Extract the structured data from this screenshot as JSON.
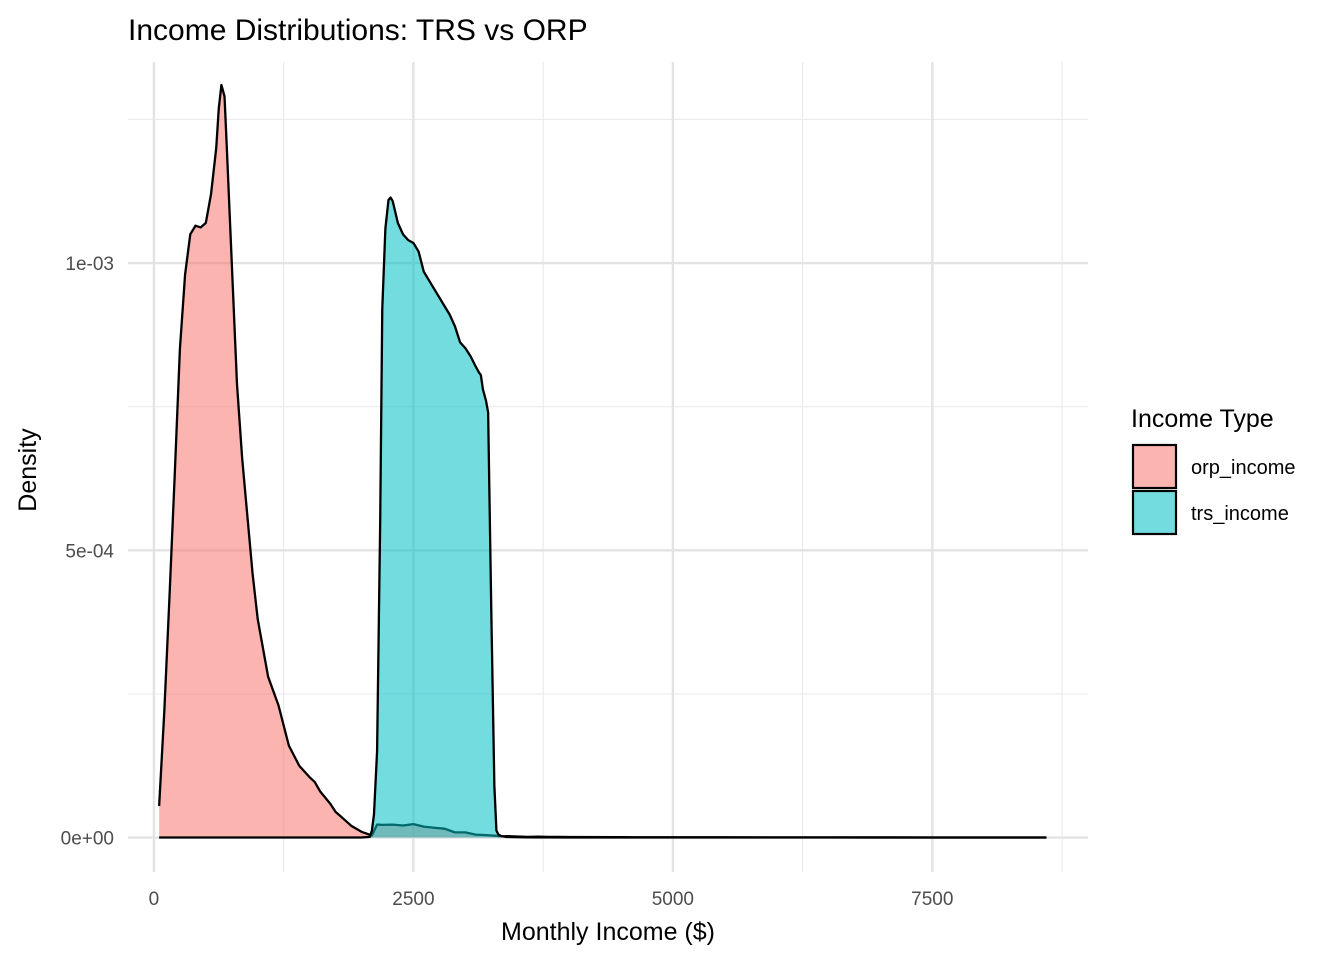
{
  "chart_data": {
    "type": "area",
    "title": "Income Distributions: TRS vs ORP",
    "xlabel": "Monthly Income ($)",
    "ylabel": "Density",
    "xlim": [
      -250,
      9000
    ],
    "ylim": [
      -6e-05,
      0.00135
    ],
    "x_ticks": [
      0,
      2500,
      5000,
      7500
    ],
    "x_tick_labels": [
      "0",
      "2500",
      "5000",
      "7500"
    ],
    "x_minor_ticks": [
      1250,
      3750,
      6250,
      8750
    ],
    "y_ticks": [
      0,
      0.0005,
      0.001
    ],
    "y_tick_labels": [
      "0e+00",
      "5e-04",
      "1e-03"
    ],
    "y_minor_ticks": [
      0.00025,
      0.00075,
      0.00125
    ],
    "grid": true,
    "legend": {
      "title": "Income Type",
      "placement": "right"
    },
    "series": [
      {
        "name": "orp_income",
        "color": "#F8766D",
        "x": [
          50,
          100,
          150,
          200,
          250,
          300,
          350,
          400,
          450,
          500,
          550,
          600,
          625,
          650,
          680,
          700,
          750,
          800,
          850,
          900,
          950,
          1000,
          1050,
          1100,
          1200,
          1300,
          1400,
          1500,
          1550,
          1600,
          1700,
          1750,
          1800,
          1900,
          2000,
          2100,
          2150,
          2200,
          2300,
          2400,
          2500,
          2600,
          2700,
          2800,
          2900,
          3000,
          3100,
          3200,
          3300,
          3350,
          3400,
          3500,
          3600,
          3700,
          3800,
          3900,
          4000,
          4500,
          5000,
          5500,
          6000,
          6500,
          7000,
          7500,
          8000,
          8600
        ],
        "values": [
          5.5e-05,
          0.00022,
          0.00042,
          0.00063,
          0.00085,
          0.00098,
          0.00105,
          0.001065,
          0.001062,
          0.00107,
          0.00112,
          0.0012,
          0.00127,
          0.00131,
          0.00129,
          0.00121,
          0.001,
          0.00079,
          0.00066,
          0.00056,
          0.00046,
          0.00038,
          0.00033,
          0.00028,
          0.00023,
          0.00016,
          0.000125,
          0.000105,
          9.66e-05,
          8.06e-05,
          5.86e-05,
          4.46e-05,
          3.68e-05,
          2.06e-05,
          1e-05,
          3.6e-06,
          2.26e-05,
          2.2e-05,
          2.24e-05,
          2.1e-05,
          2.34e-05,
          1.9e-05,
          1.7e-05,
          1.54e-05,
          9e-06,
          9e-06,
          5e-06,
          4.2e-06,
          3e-06,
          2e-06,
          2.4e-06,
          1.8e-06,
          1.2e-06,
          1.6e-06,
          1.2e-06,
          1e-06,
          8e-07,
          6e-07,
          4e-07,
          4e-07,
          3e-07,
          3e-07,
          2e-07,
          1e-07,
          1e-07,
          1e-07
        ]
      },
      {
        "name": "trs_income",
        "color": "#00BFC4",
        "x": [
          50,
          2000,
          2080,
          2100,
          2120,
          2150,
          2180,
          2200,
          2230,
          2260,
          2280,
          2300,
          2350,
          2400,
          2450,
          2500,
          2550,
          2600,
          2650,
          2700,
          2750,
          2800,
          2850,
          2900,
          2950,
          3000,
          3050,
          3100,
          3130,
          3150,
          3170,
          3200,
          3220,
          3250,
          3280,
          3300,
          3320,
          3350,
          3400,
          3600,
          4000,
          5000,
          6000,
          7000,
          8000,
          8600
        ],
        "values": [
          0,
          0,
          1.2e-06,
          1.2e-05,
          4e-05,
          0.00015,
          0.00055,
          0.00092,
          0.00106,
          0.00111,
          0.001114,
          0.001108,
          0.00107,
          0.00105,
          0.00104,
          0.001035,
          0.00102,
          0.000985,
          0.00097,
          0.000955,
          0.00094,
          0.000925,
          0.00091,
          0.00089,
          0.000862,
          0.000852,
          0.000838,
          0.00082,
          0.00081,
          0.000805,
          0.00078,
          0.00076,
          0.00074,
          0.0004,
          9e-05,
          1.2e-05,
          5e-06,
          2.4e-06,
          1e-06,
          3e-07,
          1e-07,
          0,
          0,
          0,
          0,
          0
        ]
      }
    ]
  }
}
